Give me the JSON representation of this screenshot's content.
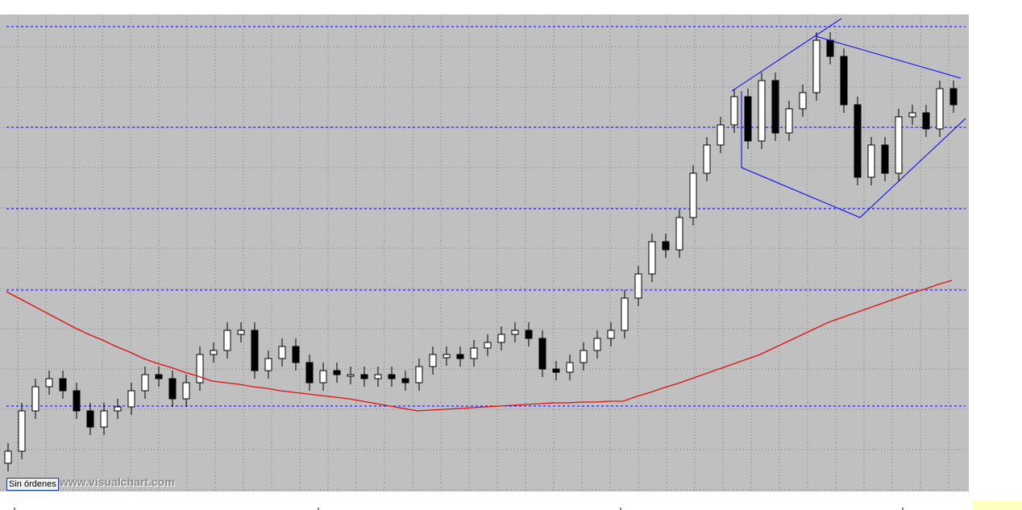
{
  "chart_data": {
    "type": "candlestick",
    "ylim": [
      0,
      592
    ],
    "open": [
      35,
      50,
      100,
      130,
      140,
      125,
      100,
      80,
      100,
      105,
      125,
      145,
      140,
      115,
      135,
      170,
      175,
      195,
      200,
      150,
      165,
      180,
      160,
      135,
      150,
      143,
      145,
      140,
      145,
      140,
      135,
      155,
      166,
      170,
      165,
      178,
      185,
      195,
      200,
      190,
      152,
      148,
      160,
      175,
      190,
      200,
      240,
      270,
      310,
      300,
      340,
      395,
      430,
      455,
      490,
      435,
      510,
      445,
      475,
      495,
      560,
      540,
      480,
      390,
      430,
      395,
      465,
      470,
      450,
      500
    ],
    "high": [
      60,
      110,
      140,
      150,
      150,
      135,
      110,
      110,
      115,
      135,
      155,
      155,
      150,
      145,
      180,
      185,
      210,
      210,
      210,
      175,
      190,
      190,
      170,
      160,
      160,
      155,
      155,
      155,
      155,
      150,
      165,
      180,
      180,
      180,
      188,
      195,
      205,
      210,
      210,
      200,
      162,
      170,
      185,
      200,
      210,
      250,
      280,
      320,
      320,
      350,
      405,
      440,
      465,
      500,
      500,
      520,
      520,
      485,
      505,
      570,
      570,
      550,
      490,
      440,
      440,
      475,
      480,
      480,
      510,
      510
    ],
    "low": [
      25,
      40,
      90,
      120,
      115,
      90,
      70,
      70,
      90,
      95,
      115,
      130,
      105,
      105,
      125,
      160,
      165,
      185,
      140,
      140,
      155,
      150,
      125,
      125,
      135,
      133,
      130,
      130,
      130,
      125,
      125,
      145,
      156,
      155,
      155,
      168,
      175,
      185,
      180,
      142,
      138,
      138,
      150,
      165,
      180,
      190,
      230,
      260,
      290,
      290,
      330,
      385,
      420,
      445,
      425,
      425,
      435,
      435,
      465,
      485,
      530,
      470,
      380,
      380,
      385,
      385,
      455,
      440,
      440,
      470
    ],
    "close": [
      50,
      100,
      130,
      140,
      125,
      100,
      80,
      100,
      105,
      125,
      145,
      140,
      115,
      135,
      170,
      175,
      200,
      200,
      150,
      165,
      180,
      160,
      135,
      150,
      145,
      145,
      140,
      145,
      140,
      135,
      155,
      170,
      170,
      165,
      178,
      185,
      195,
      200,
      190,
      152,
      148,
      160,
      175,
      190,
      200,
      240,
      270,
      310,
      300,
      340,
      395,
      430,
      455,
      490,
      435,
      510,
      445,
      475,
      495,
      560,
      540,
      480,
      390,
      430,
      395,
      465,
      470,
      450,
      500,
      480
    ],
    "moving_average": {
      "color": "#e01010",
      "values": [
        248,
        239,
        230,
        221,
        212,
        203,
        195,
        188,
        180,
        173,
        165,
        159,
        154,
        148,
        143,
        137,
        135,
        133,
        130,
        128,
        125,
        123,
        121,
        119,
        117,
        115,
        112,
        109,
        106,
        103,
        100,
        101,
        102,
        103,
        104,
        105,
        106,
        107,
        108,
        109,
        110,
        110,
        111,
        111,
        112,
        112,
        118,
        123,
        129,
        134,
        140,
        146,
        152,
        158,
        164,
        170,
        178,
        186,
        194,
        202,
        210,
        216,
        222,
        228,
        234,
        240,
        246,
        251,
        257,
        262
      ]
    },
    "levels": [
      577,
      452,
      351,
      250,
      106
    ],
    "level_color": "#0000ff",
    "candle_colors": {
      "up": "#ffffff",
      "down": "#000000"
    }
  },
  "status_label": "Sin órdenes",
  "watermark": "www.visualchart.com"
}
